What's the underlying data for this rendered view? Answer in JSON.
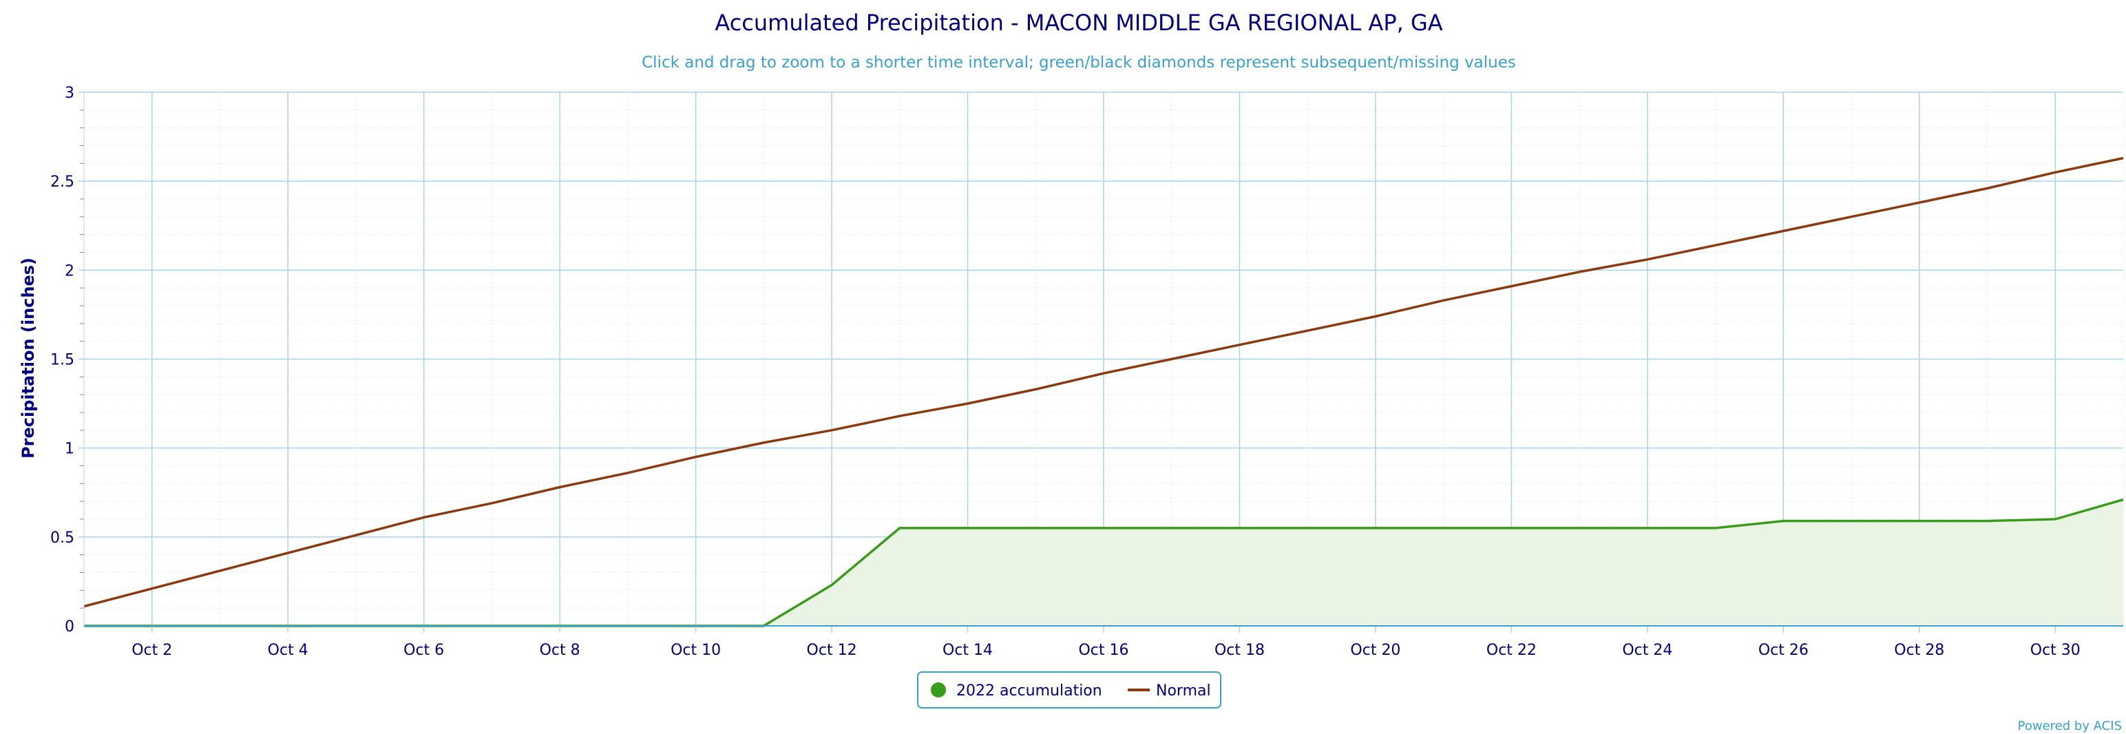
{
  "chart": {
    "title": "Accumulated Precipitation - MACON MIDDLE GA REGIONAL AP, GA",
    "subtitle": "Click and drag to zoom to a shorter time interval; green/black diamonds represent subsequent/missing values",
    "credit": "Powered by ACIS"
  },
  "colors": {
    "accumulation_line": "#3a9c1c",
    "accumulation_fill": "#eaf4e4",
    "normal_line": "#8b3a0f",
    "major_grid": "#a8d4ea",
    "minor_grid": "#e8e8e8",
    "axis_line": "#3aa0d0",
    "text": "#000080",
    "legend_border": "#3aa0d0"
  },
  "chart_data": {
    "type": "area",
    "title": "Accumulated Precipitation - MACON MIDDLE GA REGIONAL AP, GA",
    "subtitle": "Click and drag to zoom to a shorter time interval; green/black diamonds represent subsequent/missing values",
    "xlabel": "",
    "ylabel": "Precipitation (inches)",
    "ylim": [
      0,
      3
    ],
    "xlim": [
      1,
      31
    ],
    "y_ticks": [
      {
        "value": 0,
        "label": "0"
      },
      {
        "value": 0.5,
        "label": "0.5"
      },
      {
        "value": 1,
        "label": "1"
      },
      {
        "value": 1.5,
        "label": "1.5"
      },
      {
        "value": 2,
        "label": "2"
      },
      {
        "value": 2.5,
        "label": "2.5"
      },
      {
        "value": 3,
        "label": "3"
      }
    ],
    "x_ticks": [
      {
        "value": 2,
        "label": "Oct 2"
      },
      {
        "value": 4,
        "label": "Oct 4"
      },
      {
        "value": 6,
        "label": "Oct 6"
      },
      {
        "value": 8,
        "label": "Oct 8"
      },
      {
        "value": 10,
        "label": "Oct 10"
      },
      {
        "value": 12,
        "label": "Oct 12"
      },
      {
        "value": 14,
        "label": "Oct 14"
      },
      {
        "value": 16,
        "label": "Oct 16"
      },
      {
        "value": 18,
        "label": "Oct 18"
      },
      {
        "value": 20,
        "label": "Oct 20"
      },
      {
        "value": 22,
        "label": "Oct 22"
      },
      {
        "value": 24,
        "label": "Oct 24"
      },
      {
        "value": 26,
        "label": "Oct 26"
      },
      {
        "value": 28,
        "label": "Oct 28"
      },
      {
        "value": 30,
        "label": "Oct 30"
      }
    ],
    "grid": true,
    "legend": "bottom-center",
    "series": [
      {
        "name": "2022 accumulation",
        "type": "area",
        "x": [
          1,
          2,
          3,
          4,
          5,
          6,
          7,
          8,
          9,
          10,
          11,
          12,
          13,
          14,
          15,
          16,
          17,
          18,
          19,
          20,
          21,
          22,
          23,
          24,
          25,
          26,
          27,
          28,
          29,
          30,
          31
        ],
        "values": [
          0,
          0,
          0,
          0,
          0,
          0,
          0,
          0,
          0,
          0,
          0,
          0.23,
          0.55,
          0.55,
          0.55,
          0.55,
          0.55,
          0.55,
          0.55,
          0.55,
          0.55,
          0.55,
          0.55,
          0.55,
          0.55,
          0.59,
          0.59,
          0.59,
          0.59,
          0.6,
          0.71
        ]
      },
      {
        "name": "Normal",
        "type": "line",
        "x": [
          1,
          2,
          3,
          4,
          5,
          6,
          7,
          8,
          9,
          10,
          11,
          12,
          13,
          14,
          15,
          16,
          17,
          18,
          19,
          20,
          21,
          22,
          23,
          24,
          25,
          26,
          27,
          28,
          29,
          30,
          31
        ],
        "values": [
          0.11,
          0.21,
          0.31,
          0.41,
          0.51,
          0.61,
          0.69,
          0.78,
          0.86,
          0.95,
          1.03,
          1.1,
          1.18,
          1.25,
          1.33,
          1.42,
          1.5,
          1.58,
          1.66,
          1.74,
          1.83,
          1.91,
          1.99,
          2.06,
          2.14,
          2.22,
          2.3,
          2.38,
          2.46,
          2.55,
          2.63
        ]
      }
    ]
  }
}
